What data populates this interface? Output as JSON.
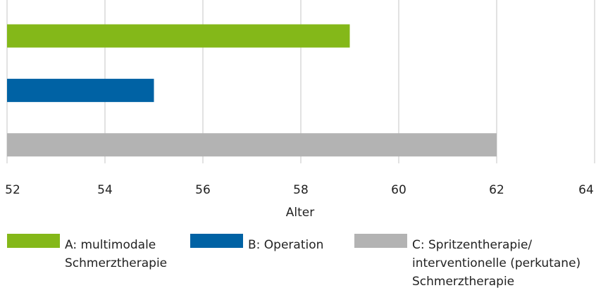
{
  "chart_data": {
    "type": "bar",
    "orientation": "horizontal",
    "xlabel": "Alter",
    "series": [
      {
        "name": "A: multimodale Schmerztherapie",
        "color": "#84b819",
        "values": [
          59
        ]
      },
      {
        "name": "B: Operation",
        "color": "#0062a4",
        "values": [
          55
        ]
      },
      {
        "name": "C: Spritzentherapie/ interventionelle (perkutane) Schmerztherapie",
        "color": "#b3b3b3",
        "values": [
          62
        ]
      }
    ],
    "xlim": [
      52,
      64
    ],
    "xticks": [
      52,
      54,
      56,
      58,
      60,
      62,
      64
    ],
    "grid": true
  }
}
